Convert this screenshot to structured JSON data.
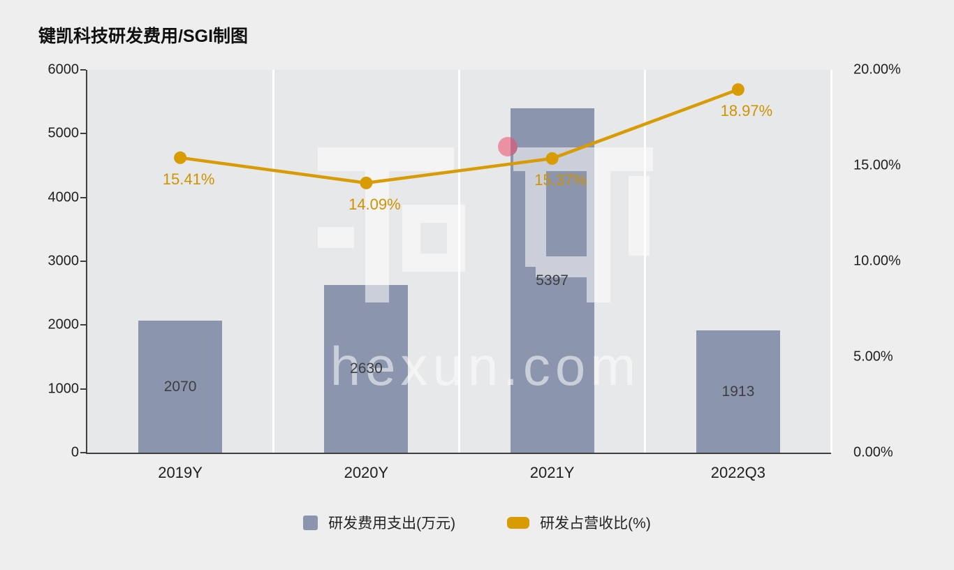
{
  "title": "键凯科技研发费用/SGI制图",
  "watermark": {
    "logo_text": "和讯",
    "domain": "hexun.com"
  },
  "colors": {
    "background": "#eeeeee",
    "plot_background": "#e7e8ea",
    "grid": "#ffffff",
    "axis_line": "#3f3f41",
    "bar": "#8b95ae",
    "line": "#d89b00",
    "line_label": "#d09300",
    "bar_label": "#3e3e3e",
    "axis_text": "#1f1f1f"
  },
  "chart_data": {
    "type": "combo_bar_line",
    "title": "键凯科技研发费用/SGI制图",
    "categories": [
      "2019Y",
      "2020Y",
      "2021Y",
      "2022Q3"
    ],
    "series": [
      {
        "name": "研发费用支出(万元)",
        "type": "bar",
        "axis": "left",
        "values": [
          2070,
          2630,
          5397,
          1913
        ],
        "data_labels": [
          "2070",
          "2630",
          "5397",
          "1913"
        ],
        "color": "#8b95ae"
      },
      {
        "name": "研发占营收比(%)",
        "type": "line",
        "axis": "right",
        "values": [
          15.41,
          14.09,
          15.37,
          18.97
        ],
        "data_labels": [
          "15.41%",
          "14.09%",
          "15.37%",
          "18.97%"
        ],
        "color": "#d89b00"
      }
    ],
    "left_axis": {
      "min": 0,
      "max": 6000,
      "tick_values": [
        0,
        1000,
        2000,
        3000,
        4000,
        5000,
        6000
      ],
      "tick_labels": [
        "0",
        "1000",
        "2000",
        "3000",
        "4000",
        "5000",
        "6000"
      ]
    },
    "right_axis": {
      "min": 0,
      "max": 20,
      "tick_values": [
        0,
        5,
        10,
        15,
        20
      ],
      "tick_labels": [
        "0.00%",
        "5.00%",
        "10.00%",
        "15.00%",
        "20.00%"
      ]
    },
    "grid": "vertical-white-bands",
    "legend_position": "bottom"
  },
  "legend": {
    "items": [
      {
        "label": "研发费用支出(万元)",
        "color": "#8b95ae",
        "shape": "square"
      },
      {
        "label": "研发占营收比(%)",
        "color": "#d89b00",
        "shape": "rounded-rect"
      }
    ]
  }
}
